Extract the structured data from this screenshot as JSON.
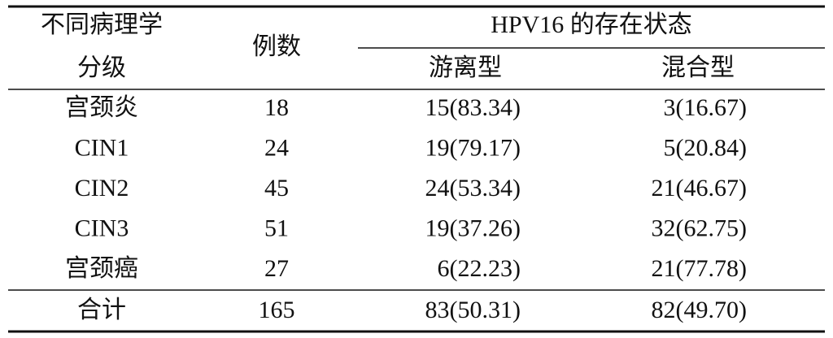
{
  "table": {
    "header": {
      "group_col": [
        "不同病理学",
        "分级"
      ],
      "count_col": "例数",
      "status_col": "HPV16 的存在状态",
      "sub_cols": [
        "游离型",
        "混合型"
      ]
    },
    "rows": [
      [
        "宫颈炎",
        "18",
        "15(83.34)",
        "3(16.67)"
      ],
      [
        "CIN1",
        "24",
        "19(79.17)",
        "5(20.84)"
      ],
      [
        "CIN2",
        "45",
        "24(53.34)",
        "21(46.67)"
      ],
      [
        "CIN3",
        "51",
        "19(37.26)",
        "32(62.75)"
      ],
      [
        "宫颈癌",
        "27",
        "6(22.23)",
        "21(77.78)"
      ]
    ],
    "total": [
      "合计",
      "165",
      "83(50.31)",
      "82(49.70)"
    ]
  }
}
